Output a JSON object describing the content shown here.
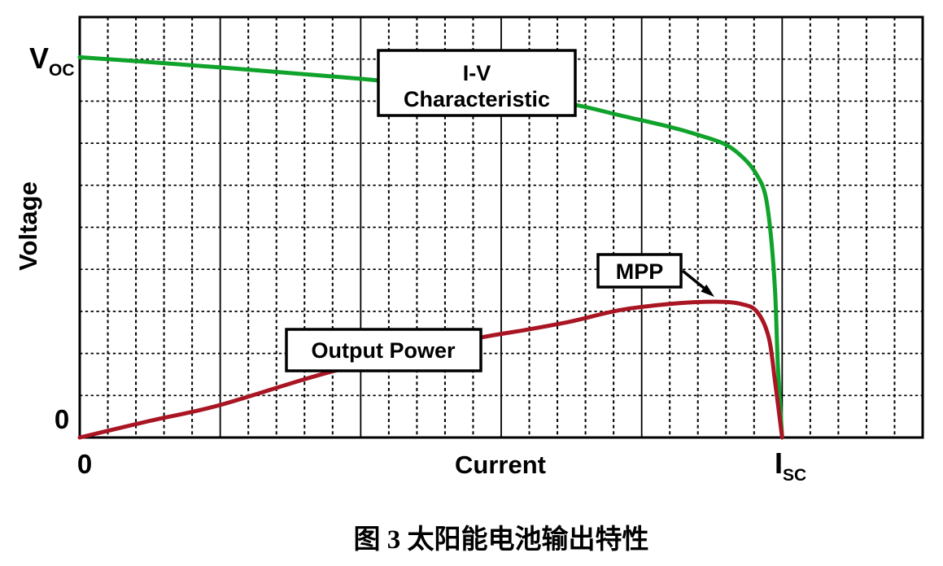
{
  "figure": {
    "caption": "图 3 太阳能电池输出特性"
  },
  "labels": {
    "y_axis_title": "Voltage",
    "x_axis_title": "Current",
    "y_max_tick_main": "V",
    "y_max_tick_sub": "OC",
    "y_min_tick": "0",
    "x_min_tick": "0",
    "x_max_tick_main": "I",
    "x_max_tick_sub": "SC",
    "box_iv_line1": "I-V",
    "box_iv_line2": "Characteristic",
    "box_mpp": "MPP",
    "box_power": "Output Power"
  },
  "colors": {
    "iv_curve": "#10a32b",
    "power_curve": "#a91523",
    "grid": "#000000",
    "annotation_box_fill": "#ffffff",
    "annotation_box_border": "#000000"
  },
  "chart_data": {
    "type": "line",
    "title": "",
    "xlabel": "Current",
    "ylabel": "Voltage",
    "x_axis": {
      "min": 0,
      "max": 1.2,
      "ticks": [
        {
          "pos": 0,
          "label": "0"
        },
        {
          "pos": 1,
          "label": "I_SC"
        }
      ],
      "units": "fraction of short-circuit current I_SC"
    },
    "y_axis": {
      "min": 0,
      "max": 1.11,
      "ticks": [
        {
          "pos": 0,
          "label": "0"
        },
        {
          "pos": 1,
          "label": "V_OC"
        }
      ],
      "units": "fraction of open-circuit voltage V_OC (power curve on same normalized axis)"
    },
    "grid": "dashed minor grid both directions; solid vertical major lines every 5 minor divisions",
    "legend_position": "none (labels boxed on plot)",
    "series": [
      {
        "name": "I-V Characteristic",
        "color": "#10a32b",
        "x": [
          0,
          0.1,
          0.2,
          0.3,
          0.4,
          0.5,
          0.58,
          0.7,
          0.77,
          0.84,
          0.88,
          0.92,
          0.947,
          0.964,
          0.976,
          0.984,
          0.99,
          0.994,
          1.0
        ],
        "y": [
          1.005,
          0.992,
          0.978,
          0.963,
          0.948,
          0.93,
          0.916,
          0.881,
          0.851,
          0.821,
          0.8,
          0.774,
          0.735,
          0.694,
          0.641,
          0.533,
          0.383,
          0.189,
          0.0
        ]
      },
      {
        "name": "Output Power",
        "color": "#a91523",
        "x": [
          0,
          0.1,
          0.2,
          0.35,
          0.49,
          0.57,
          0.64,
          0.7,
          0.77,
          0.84,
          0.906,
          0.941,
          0.964,
          0.981,
          0.99,
          1.0
        ],
        "y": [
          0,
          0.044,
          0.086,
          0.17,
          0.232,
          0.264,
          0.286,
          0.307,
          0.337,
          0.353,
          0.359,
          0.353,
          0.333,
          0.264,
          0.146,
          0.0
        ]
      }
    ],
    "annotations": [
      {
        "label": "I-V Characteristic",
        "type": "boxed-label",
        "refers_to": "I-V Characteristic"
      },
      {
        "label": "Output Power",
        "type": "boxed-label",
        "refers_to": "Output Power"
      },
      {
        "label": "MPP",
        "type": "boxed-label-with-arrow",
        "points_at": {
          "x": 0.906,
          "y": 0.359
        },
        "refers_to": "maximum power point of Output Power curve"
      }
    ]
  }
}
